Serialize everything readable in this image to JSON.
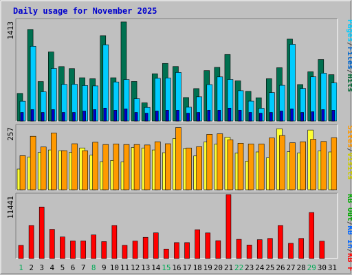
{
  "chart_data": {
    "type": "bar",
    "title": "Daily usage for November 2025",
    "days": [
      "1",
      "2",
      "3",
      "4",
      "5",
      "6",
      "7",
      "8",
      "9",
      "10",
      "11",
      "12",
      "13",
      "14",
      "15",
      "16",
      "17",
      "18",
      "19",
      "20",
      "21",
      "22",
      "23",
      "24",
      "25",
      "26",
      "27",
      "28",
      "29",
      "30",
      "31"
    ],
    "weekend_days": [
      1,
      8,
      15,
      22,
      29
    ],
    "panels": [
      {
        "ylabel_max": "1413",
        "ymax": 1413,
        "legend": [
          {
            "text": "Hits",
            "color": "#006633"
          },
          {
            "text": "/",
            "color": "#444444"
          },
          {
            "text": "Files",
            "color": "#0066cc"
          },
          {
            "text": "/",
            "color": "#444444"
          },
          {
            "text": "Pages",
            "color": "#00ccff"
          }
        ],
        "series": [
          {
            "name": "Hits",
            "color": "#007050",
            "values": [
              386,
              1280,
              552,
              966,
              761,
              733,
              605,
              591,
              1193,
              605,
              1385,
              553,
              254,
              660,
              805,
              762,
              328,
              453,
              705,
              750,
              930,
              561,
              415,
              325,
              591,
              745,
              1145,
              510,
              689,
              860,
              648
            ]
          },
          {
            "name": "Files",
            "color": "#00ccff",
            "values": [
              277,
              1045,
              409,
              735,
              512,
              514,
              496,
              491,
              1066,
              546,
              580,
              312,
              190,
              597,
              601,
              679,
              193,
              338,
              509,
              617,
              581,
              424,
              278,
              178,
              398,
              499,
              1072,
              455,
              618,
              669,
              533
            ]
          },
          {
            "name": "Pages",
            "color": "#0000cc",
            "values": [
              120,
              160,
              120,
              160,
              120,
              120,
              140,
              160,
              180,
              150,
              170,
              120,
              110,
              140,
              150,
              150,
              110,
              120,
              150,
              150,
              180,
              150,
              120,
              110,
              120,
              140,
              170,
              120,
              130,
              160,
              150
            ]
          }
        ]
      },
      {
        "ylabel_max": "257",
        "ymax": 257,
        "legend": [
          {
            "text": "Visits",
            "color": "#cccc00"
          },
          {
            "text": "/",
            "color": "#444444"
          },
          {
            "text": "Sites",
            "color": "#ff9900"
          }
        ],
        "series": [
          {
            "name": "Visits",
            "color": "#ffff33",
            "values": [
              83,
              132,
              150,
              160,
              157,
              150,
              168,
              139,
              113,
              118,
              112,
              170,
              168,
              160,
              149,
              206,
              165,
              136,
              193,
              183,
              211,
              147,
              115,
              152,
              128,
              245,
              153,
              148,
              240,
              156,
              152
            ]
          },
          {
            "name": "Sites",
            "color": "#ff9900",
            "values": [
              137,
              215,
              172,
              228,
              157,
              185,
              157,
              191,
              182,
              184,
              182,
              182,
              180,
              193,
              185,
              250,
              168,
              173,
              223,
              225,
              201,
              187,
              184,
              184,
              208,
              218,
              189,
              193,
              203,
              194,
              209
            ]
          }
        ]
      },
      {
        "ylabel_max": "11441",
        "ymax": 11441,
        "legend": [
          {
            "text": "KB F",
            "color": "#ff0000"
          },
          {
            "text": "/",
            "color": "#444444"
          },
          {
            "text": "KB In",
            "color": "#0066ff"
          },
          {
            "text": "/",
            "color": "#444444"
          },
          {
            "text": "KB Out",
            "color": "#00aa00"
          }
        ],
        "series": [
          {
            "name": "KB F",
            "color": "#ff0000",
            "values": [
              2357,
              5911,
              9206,
              5218,
              3860,
              3148,
              3147,
              4219,
              3024,
              5912,
              2366,
              3124,
              3787,
              4592,
              1694,
              2844,
              2844,
              5155,
              4577,
              3191,
              11441,
              3431,
              2414,
              3371,
              3591,
              5912,
              2721,
              3593,
              8232,
              3096,
              0
            ]
          }
        ]
      }
    ]
  }
}
